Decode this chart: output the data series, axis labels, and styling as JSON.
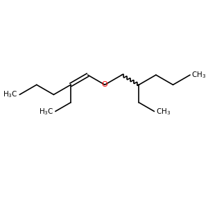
{
  "background_color": "#ffffff",
  "bond_color": "#000000",
  "oxygen_color": "#ff0000",
  "line_width": 1.2,
  "font_size": 7.5,
  "fig_width": 3.0,
  "fig_height": 3.0,
  "dpi": 100,
  "xlim": [
    0,
    10
  ],
  "ylim": [
    0,
    10
  ]
}
